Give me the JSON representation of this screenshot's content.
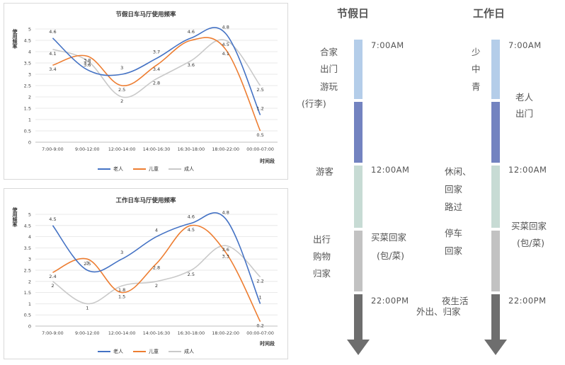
{
  "chart_data": [
    {
      "type": "line",
      "title": "节假日车马厅使用频率",
      "xlabel": "时间段",
      "ylabel": "使用频率",
      "ylim": [
        0,
        5
      ],
      "yticks": [
        "0",
        "0.5",
        "1",
        "1.5",
        "2",
        "2.5",
        "3",
        "3.5",
        "4",
        "4.5",
        "5"
      ],
      "categories": [
        "7:00-9:00",
        "9:00-12:00",
        "12:00-14:00",
        "14:00-16:30",
        "16:30-18:00",
        "18:00-22:00",
        "00:00-07:00"
      ],
      "legend": "bottom",
      "series": [
        {
          "name": "老人",
          "color": "#4472c4",
          "values": [
            4.6,
            3.2,
            3,
            3.7,
            4.6,
            4.8,
            1.2
          ],
          "labels": [
            "4.6",
            "3.2",
            "3",
            "3.7",
            "4.6",
            "4.8",
            "1.2"
          ]
        },
        {
          "name": "儿童",
          "color": "#ed7d31",
          "values": [
            3.4,
            3.8,
            2.5,
            3.4,
            4.5,
            4.1,
            0.5
          ],
          "labels": [
            "3.4",
            "3.8",
            "2.5",
            "3.4",
            "",
            "4.1",
            "0.5"
          ]
        },
        {
          "name": "成人",
          "color": "#c9c9c9",
          "values": [
            4.1,
            3.6,
            2,
            2.8,
            3.6,
            4.5,
            2.5
          ],
          "labels": [
            "4.1",
            "3.6",
            "2",
            "2.8",
            "3.6",
            "4.5",
            "2.5"
          ]
        }
      ]
    },
    {
      "type": "line",
      "title": "工作日车马厅使用频率",
      "xlabel": "时间段",
      "ylabel": "使用频率",
      "ylim": [
        0,
        5
      ],
      "yticks": [
        "0",
        "0.5",
        "1",
        "1.5",
        "2",
        "2.5",
        "3",
        "3.5",
        "4",
        "4.5",
        "5"
      ],
      "categories": [
        "7:00-9:00",
        "9:00-12:00",
        "12:00-14:00",
        "14:00-16:30",
        "16:30-18:00",
        "18:00-22:00",
        "00:00-07:00"
      ],
      "legend": "bottom",
      "series": [
        {
          "name": "老人",
          "color": "#4472c4",
          "values": [
            4.5,
            2.5,
            3,
            4,
            4.6,
            4.8,
            1
          ],
          "labels": [
            "4.5",
            "2.5",
            "3",
            "4",
            "4.6",
            "4.8",
            "1"
          ]
        },
        {
          "name": "儿童",
          "color": "#ed7d31",
          "values": [
            2.4,
            3,
            1.5,
            2.8,
            4.5,
            3.3,
            0.2
          ],
          "labels": [
            "2.4",
            "3",
            "1.5",
            "2.8",
            "4.5",
            "3.3",
            "0.2"
          ]
        },
        {
          "name": "成人",
          "color": "#c9c9c9",
          "values": [
            2,
            1,
            1.8,
            2,
            2.5,
            3.6,
            2.2
          ],
          "labels": [
            "2",
            "1",
            "1.8",
            "2",
            "2.5",
            "3.6",
            "2.2"
          ]
        }
      ]
    }
  ],
  "timeline": {
    "holiday": {
      "heading": "节假日",
      "times": [
        "7:00AM",
        "12:00AM",
        "22:00PM"
      ],
      "labels": {
        "l1": "合家",
        "l2": "出门",
        "l3": "游玩",
        "l4": "(行李)",
        "l5": "游客",
        "l6": "出行",
        "l7": "购物",
        "l8": "归家",
        "l9": "买菜回家",
        "l10": "(包/菜)"
      }
    },
    "workday": {
      "heading": "工作日",
      "times": [
        "7:00AM",
        "12:00AM",
        "22:00PM"
      ],
      "labels": {
        "w1": "少",
        "w2": "中",
        "w3": "青",
        "w4": "老人",
        "w5": "出门",
        "w6": "休闲、",
        "w7": "回家",
        "w8": "路过",
        "w9": "停车",
        "w10": "回家",
        "w11": "买菜回家",
        "w12": "(包/菜)",
        "w13": "夜生活",
        "w14": "外出、归家"
      }
    },
    "segment_colors": [
      "#b4cde9",
      "#7383c0",
      "#c7dbd4",
      "#c2c2c2",
      "#6e6e6e"
    ]
  }
}
